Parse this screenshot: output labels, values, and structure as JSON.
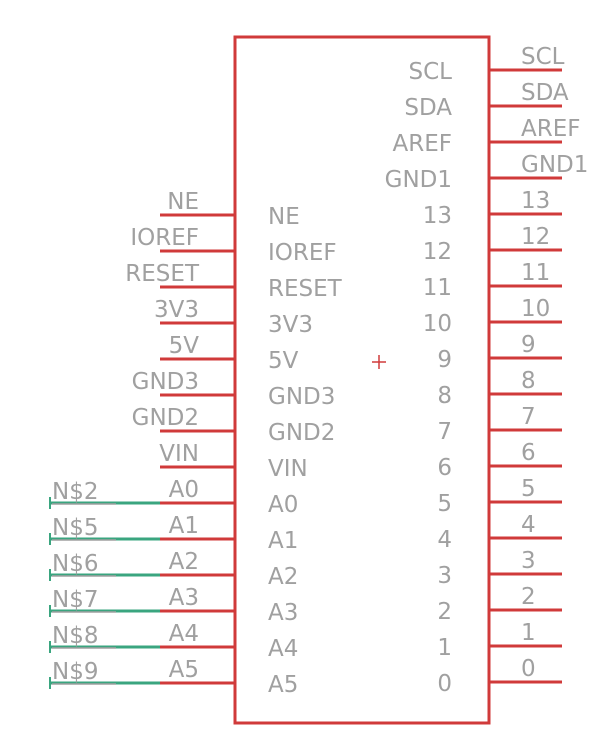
{
  "part": {
    "left_pins": [
      {
        "pin": "NE",
        "inner": "NE"
      },
      {
        "pin": "IOREF",
        "inner": "IOREF"
      },
      {
        "pin": "RESET",
        "inner": "RESET"
      },
      {
        "pin": "3V3",
        "inner": "3V3"
      },
      {
        "pin": "5V",
        "inner": "5V"
      },
      {
        "pin": "GND3",
        "inner": "GND3"
      },
      {
        "pin": "GND2",
        "inner": "GND2"
      },
      {
        "pin": "VIN",
        "inner": "VIN"
      },
      {
        "pin": "A0",
        "inner": "A0",
        "net": "N$2"
      },
      {
        "pin": "A1",
        "inner": "A1",
        "net": "N$5"
      },
      {
        "pin": "A2",
        "inner": "A2",
        "net": "N$6"
      },
      {
        "pin": "A3",
        "inner": "A3",
        "net": "N$7"
      },
      {
        "pin": "A4",
        "inner": "A4",
        "net": "N$8"
      },
      {
        "pin": "A5",
        "inner": "A5",
        "net": "N$9"
      }
    ],
    "right_pins": [
      {
        "pin": "SCL",
        "inner": "SCL"
      },
      {
        "pin": "SDA",
        "inner": "SDA"
      },
      {
        "pin": "AREF",
        "inner": "AREF"
      },
      {
        "pin": "GND1",
        "inner": "GND1"
      },
      {
        "pin": "13",
        "inner": "13"
      },
      {
        "pin": "12",
        "inner": "12"
      },
      {
        "pin": "11",
        "inner": "11"
      },
      {
        "pin": "10",
        "inner": "10"
      },
      {
        "pin": "9",
        "inner": "9"
      },
      {
        "pin": "8",
        "inner": "8"
      },
      {
        "pin": "7",
        "inner": "7"
      },
      {
        "pin": "6",
        "inner": "6"
      },
      {
        "pin": "5",
        "inner": "5"
      },
      {
        "pin": "4",
        "inner": "4"
      },
      {
        "pin": "3",
        "inner": "3"
      },
      {
        "pin": "2",
        "inner": "2"
      },
      {
        "pin": "1",
        "inner": "1"
      },
      {
        "pin": "0",
        "inner": "0"
      }
    ]
  },
  "colors": {
    "body": "#d03a3a",
    "pin": "#d03a3a",
    "net_wire": "#3aa57f",
    "label": "#a0a0a0",
    "origin": "#d03a3a"
  }
}
